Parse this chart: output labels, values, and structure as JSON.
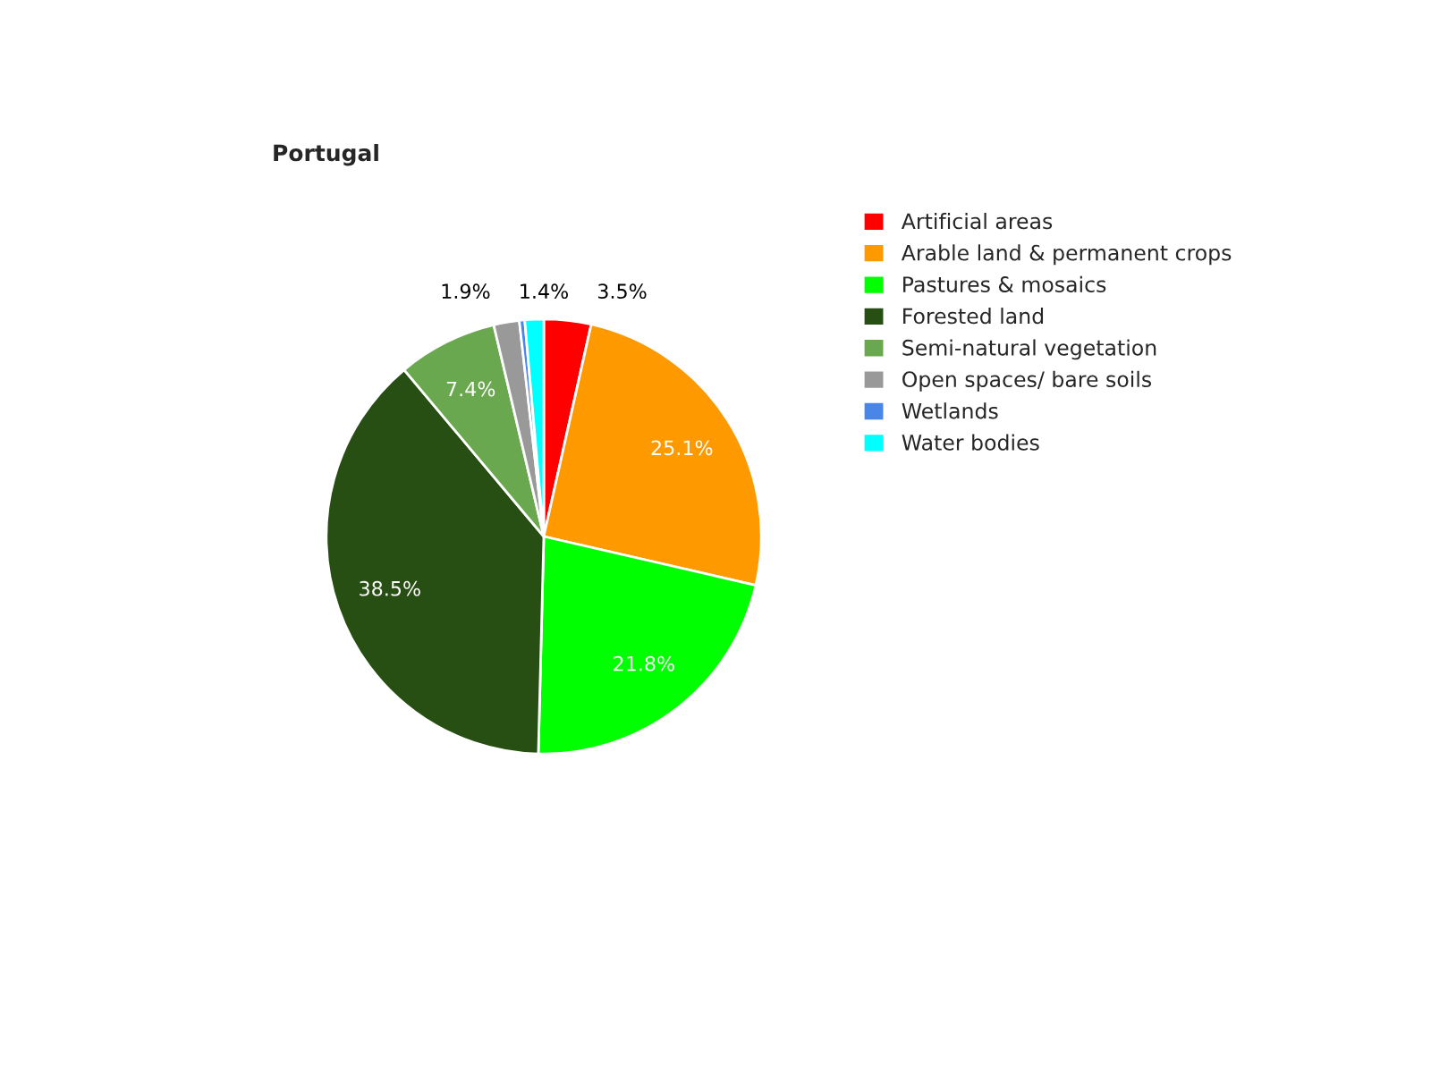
{
  "chart_data": {
    "type": "pie",
    "title": "Portugal",
    "categories": [
      "Artificial areas",
      "Arable land & permanent crops",
      "Pastures & mosaics",
      "Forested land",
      "Semi-natural vegetation",
      "Open spaces/ bare soils",
      "Wetlands",
      "Water bodies"
    ],
    "values": [
      3.5,
      25.1,
      21.8,
      38.5,
      7.4,
      1.9,
      0.4,
      1.4
    ],
    "value_labels": [
      "3.5%",
      "25.1%",
      "21.8%",
      "38.5%",
      "7.4%",
      "1.9%",
      null,
      "1.4%"
    ],
    "colors": [
      "#ff0000",
      "#ff9900",
      "#00ff00",
      "#274e13",
      "#6aa84f",
      "#999999",
      "#4a86e8",
      "#00ffff"
    ],
    "legend": "right"
  }
}
